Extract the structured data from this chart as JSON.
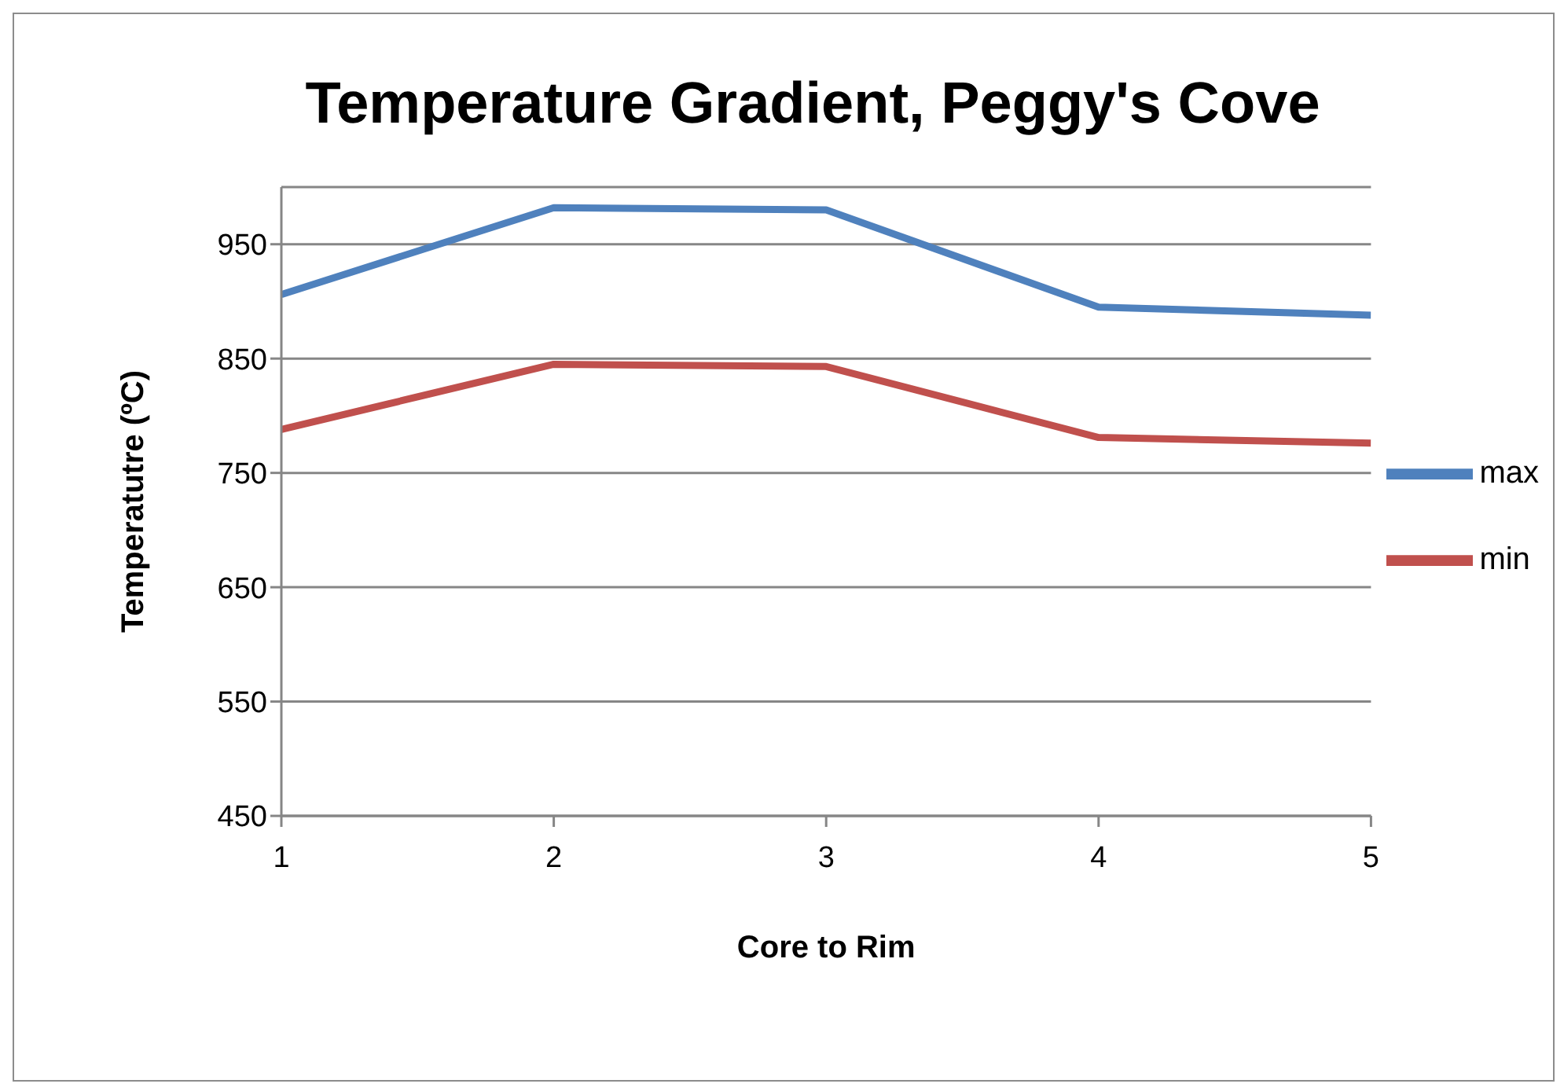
{
  "chart_data": {
    "type": "line",
    "title": "Temperature Gradient, Peggy's Cove",
    "xlabel": "Core to Rim",
    "ylabel": "Temperatutre (ºC)",
    "x": [
      1,
      2,
      3,
      4,
      5
    ],
    "series": [
      {
        "name": "max",
        "color": "#4f81bd",
        "values": [
          906,
          982,
          980,
          895,
          888
        ]
      },
      {
        "name": "min",
        "color": "#c0504d",
        "values": [
          788,
          845,
          843,
          781,
          776
        ]
      }
    ],
    "xlim": [
      1,
      5
    ],
    "xticks": [
      1,
      2,
      3,
      4,
      5
    ],
    "ylim": [
      450,
      1000
    ],
    "yticks": [
      450,
      550,
      650,
      750,
      850,
      950
    ],
    "grid": "y",
    "legend": "right",
    "marker": "none",
    "line_style": "solid"
  }
}
